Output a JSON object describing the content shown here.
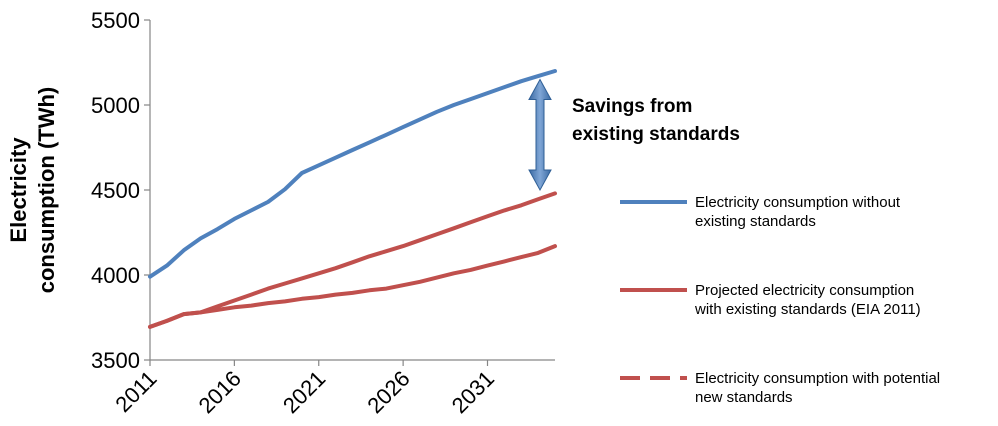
{
  "chart_data": {
    "type": "line",
    "title": "",
    "xlabel": "",
    "ylabel": [
      "Electricity",
      "consumption (TWh)"
    ],
    "xlim": [
      2011,
      2035
    ],
    "ylim": [
      3500,
      5500
    ],
    "yticks": [
      3500,
      4000,
      4500,
      5000,
      5500
    ],
    "xticks": [
      2011,
      2016,
      2021,
      2026,
      2031
    ],
    "xtick_labels": [
      "2011",
      "2016",
      "2021",
      "2026",
      "2031"
    ],
    "ytick_labels": [
      "3500",
      "4000",
      "4500",
      "5000",
      "5500"
    ],
    "grid": false,
    "legend_position": "right",
    "series": [
      {
        "name": "Electricity consumption without existing standards",
        "legend_lines": [
          "Electricity consumption without",
          "existing standards"
        ],
        "color": "#4f81bd",
        "style": "solid",
        "x": [
          2011,
          2012,
          2013,
          2014,
          2015,
          2016,
          2017,
          2018,
          2019,
          2020,
          2021,
          2022,
          2023,
          2024,
          2025,
          2026,
          2027,
          2028,
          2029,
          2030,
          2031,
          2032,
          2033,
          2034,
          2035
        ],
        "y": [
          3990,
          4055,
          4145,
          4215,
          4270,
          4330,
          4380,
          4430,
          4505,
          4600,
          4645,
          4690,
          4735,
          4780,
          4825,
          4870,
          4915,
          4960,
          5000,
          5035,
          5070,
          5105,
          5140,
          5170,
          5200
        ]
      },
      {
        "name": "Projected electricity consumption with existing standards (EIA 2011)",
        "legend_lines": [
          "Projected electricity consumption",
          "with existing standards (EIA 2011)"
        ],
        "color": "#c0504d",
        "style": "solid",
        "x": [
          2011,
          2012,
          2013,
          2014,
          2015,
          2016,
          2017,
          2018,
          2019,
          2020,
          2021,
          2022,
          2023,
          2024,
          2025,
          2026,
          2027,
          2028,
          2029,
          2030,
          2031,
          2032,
          2033,
          2034,
          2035
        ],
        "y": [
          3695,
          3730,
          3770,
          3780,
          3815,
          3850,
          3885,
          3920,
          3950,
          3980,
          4010,
          4040,
          4075,
          4110,
          4140,
          4170,
          4205,
          4240,
          4275,
          4310,
          4345,
          4380,
          4410,
          4445,
          4480
        ]
      },
      {
        "name": "Electricity consumption with potential new standards",
        "legend_lines": [
          "Electricity consumption with potential",
          "new standards"
        ],
        "color": "#c0504d",
        "style": "dashed",
        "x": [
          2011,
          2012,
          2013,
          2014,
          2015,
          2016,
          2017,
          2018,
          2019,
          2020,
          2021,
          2022,
          2023,
          2024,
          2025,
          2026,
          2027,
          2028,
          2029,
          2030,
          2031,
          2032,
          2033,
          2034,
          2035
        ],
        "y": [
          3695,
          3730,
          3770,
          3780,
          3795,
          3810,
          3820,
          3835,
          3845,
          3860,
          3870,
          3885,
          3895,
          3910,
          3920,
          3940,
          3960,
          3985,
          4010,
          4030,
          4055,
          4080,
          4105,
          4130,
          4170
        ]
      }
    ],
    "annotations": [
      {
        "type": "double-arrow",
        "text_lines": [
          "Savings from",
          "existing standards"
        ],
        "x": 2035,
        "y_from": 4500,
        "y_to": 5150,
        "color": "#4f81bd"
      }
    ]
  }
}
